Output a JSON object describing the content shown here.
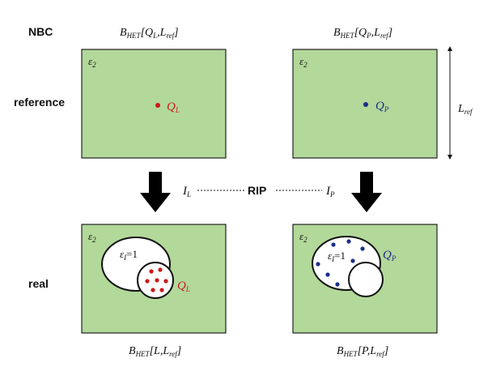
{
  "row_labels": {
    "top_left": "NBC",
    "reference": "reference",
    "real": "real"
  },
  "column_headers": {
    "left": {
      "prefix": "B",
      "sub": "HET",
      "args": "[Q",
      "args_sub": "L",
      "mid": ",L",
      "mid_sub": "ref",
      "end": "]"
    },
    "right": {
      "prefix": "B",
      "sub": "HET",
      "args": "[Q",
      "args_sub": "P",
      "mid": ",L",
      "mid_sub": "ref",
      "end": "]"
    }
  },
  "bottom_labels": {
    "left": {
      "prefix": "B",
      "sub": "HET",
      "args": "[L,L",
      "args_sub": "ref",
      "end": "]"
    },
    "right": {
      "prefix": "B",
      "sub": "HET",
      "args": "[P,L",
      "args_sub": "ref",
      "end": "]"
    }
  },
  "box_label": {
    "main": "ε",
    "sub": "2"
  },
  "inclusion_label": {
    "main": "ε",
    "sub": "I",
    "rest": "=1"
  },
  "points": {
    "left": {
      "main": "Q",
      "sub": "L",
      "color": "#cc1a1a"
    },
    "right": {
      "main": "Q",
      "sub": "P",
      "color": "#1a2f8a"
    }
  },
  "size_label": {
    "main": "L",
    "sub": "ref"
  },
  "rip": {
    "left": {
      "main": "I",
      "sub": "L"
    },
    "center": "RIP",
    "right": {
      "main": "I",
      "sub": "P"
    }
  },
  "colors": {
    "box_fill": "#b2d89a",
    "box_stroke": "#222222",
    "red_dot": "#cc1a1a",
    "blue_dot": "#1a2f8a",
    "arrow": "#000000"
  }
}
